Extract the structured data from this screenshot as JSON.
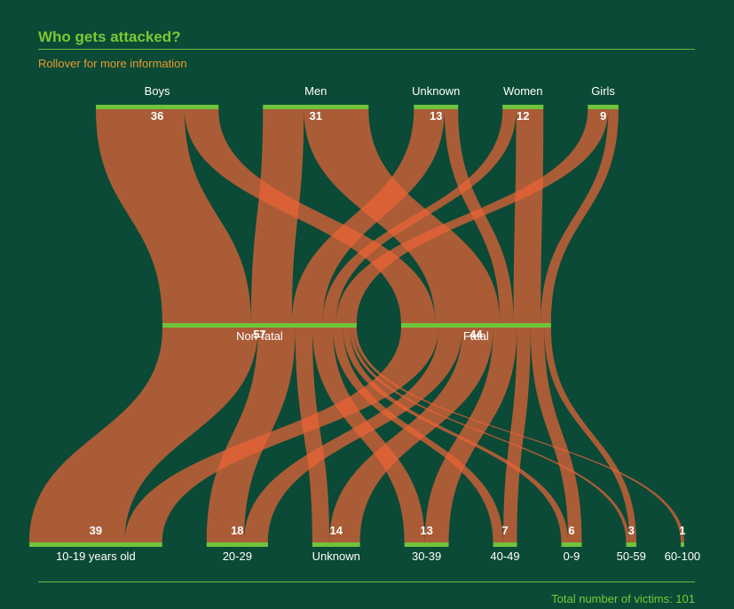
{
  "header": {
    "title": "Who gets attacked?",
    "subtitle": "Rollover for more information"
  },
  "footer": {
    "total_label": "Total number of victims: 101"
  },
  "colors": {
    "background": "#0a4a37",
    "flow": "#ee6436",
    "node_bar": "#6fc43c",
    "title": "#7dc832",
    "subtitle": "#e89a2e"
  },
  "chart_data": {
    "type": "sankey",
    "levels": [
      [
        {
          "id": "boys",
          "name": "Boys",
          "value": 36
        },
        {
          "id": "men",
          "name": "Men",
          "value": 31
        },
        {
          "id": "unknown_person",
          "name": "Unknown",
          "value": 13
        },
        {
          "id": "women",
          "name": "Women",
          "value": 12
        },
        {
          "id": "girls",
          "name": "Girls",
          "value": 9
        }
      ],
      [
        {
          "id": "nonfatal",
          "name": "Non-fatal",
          "value": 57
        },
        {
          "id": "fatal",
          "name": "Fatal",
          "value": 44
        }
      ],
      [
        {
          "id": "a10",
          "name": "10-19 years old",
          "value": 39
        },
        {
          "id": "a20",
          "name": "20-29",
          "value": 18
        },
        {
          "id": "aunk",
          "name": "Unknown",
          "value": 14
        },
        {
          "id": "a30",
          "name": "30-39",
          "value": 13
        },
        {
          "id": "a40",
          "name": "40-49",
          "value": 7
        },
        {
          "id": "a0",
          "name": "0-9",
          "value": 6
        },
        {
          "id": "a50",
          "name": "50-59",
          "value": 3
        },
        {
          "id": "a60",
          "name": "60-100",
          "value": 1
        }
      ]
    ],
    "links": [
      {
        "source": "boys",
        "target": "nonfatal",
        "value": 26
      },
      {
        "source": "boys",
        "target": "fatal",
        "value": 10
      },
      {
        "source": "men",
        "target": "nonfatal",
        "value": 12
      },
      {
        "source": "men",
        "target": "fatal",
        "value": 19
      },
      {
        "source": "unknown_person",
        "target": "nonfatal",
        "value": 9
      },
      {
        "source": "unknown_person",
        "target": "fatal",
        "value": 4
      },
      {
        "source": "women",
        "target": "nonfatal",
        "value": 4
      },
      {
        "source": "women",
        "target": "fatal",
        "value": 8
      },
      {
        "source": "girls",
        "target": "nonfatal",
        "value": 6
      },
      {
        "source": "girls",
        "target": "fatal",
        "value": 3
      },
      {
        "source": "nonfatal",
        "target": "a10",
        "value": 28
      },
      {
        "source": "nonfatal",
        "target": "a20",
        "value": 11
      },
      {
        "source": "nonfatal",
        "target": "aunk",
        "value": 5
      },
      {
        "source": "nonfatal",
        "target": "a30",
        "value": 6
      },
      {
        "source": "nonfatal",
        "target": "a40",
        "value": 3
      },
      {
        "source": "nonfatal",
        "target": "a0",
        "value": 2
      },
      {
        "source": "nonfatal",
        "target": "a50",
        "value": 1
      },
      {
        "source": "nonfatal",
        "target": "a60",
        "value": 1
      },
      {
        "source": "fatal",
        "target": "a10",
        "value": 11
      },
      {
        "source": "fatal",
        "target": "a20",
        "value": 7
      },
      {
        "source": "fatal",
        "target": "aunk",
        "value": 9
      },
      {
        "source": "fatal",
        "target": "a30",
        "value": 7
      },
      {
        "source": "fatal",
        "target": "a40",
        "value": 4
      },
      {
        "source": "fatal",
        "target": "a0",
        "value": 4
      },
      {
        "source": "fatal",
        "target": "a50",
        "value": 2
      }
    ]
  }
}
